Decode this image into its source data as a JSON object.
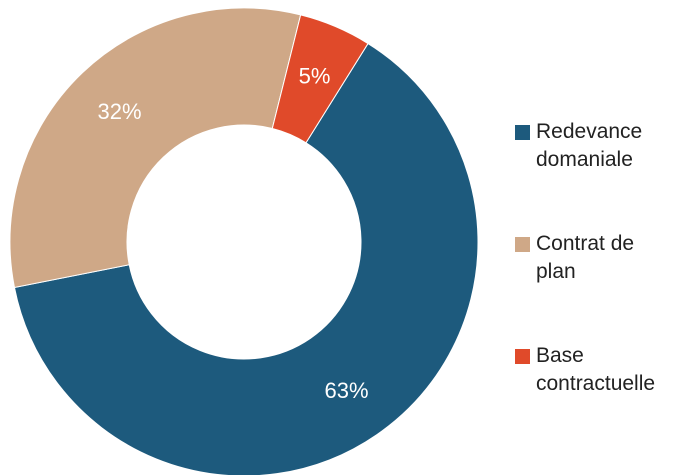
{
  "chart_data": {
    "type": "pie",
    "variant": "donut",
    "title": "",
    "slices": [
      {
        "name": "Redevance domaniale",
        "value": 63,
        "label": "63%",
        "color": "#1d5a7d"
      },
      {
        "name": "Contrat de plan",
        "value": 32,
        "label": "32%",
        "color": "#cfa887"
      },
      {
        "name": "Base contractuelle",
        "value": 5,
        "label": "5%",
        "color": "#e04a2a"
      }
    ],
    "legend": {
      "placement": "right",
      "entries": [
        {
          "text": "Redevance\ndomaniale",
          "color": "#1d5a7d"
        },
        {
          "text": "Contrat de\nplan",
          "color": "#cfa887"
        },
        {
          "text": "Base\ncontractuelle",
          "color": "#e04a2a"
        }
      ]
    }
  }
}
